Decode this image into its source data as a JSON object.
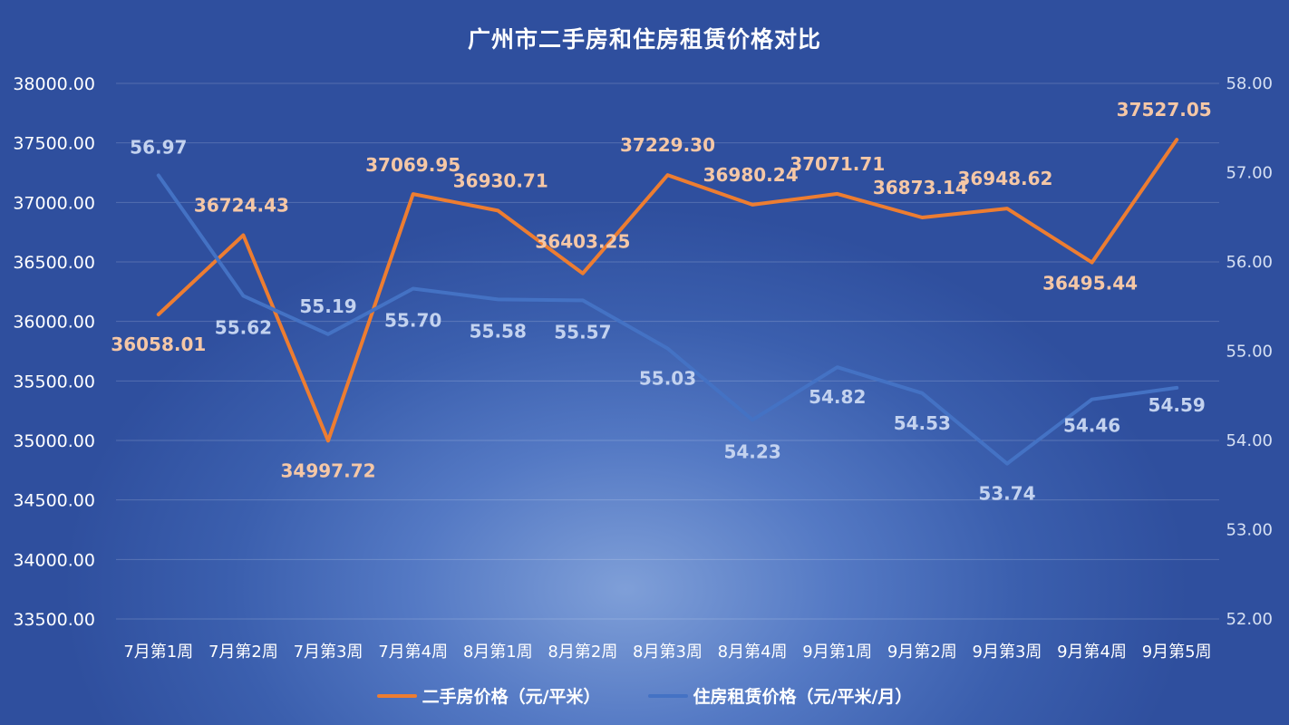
{
  "chart_data": {
    "type": "line",
    "title": "广州市二手房和住房租赁价格对比",
    "categories": [
      "7月第1周",
      "7月第2周",
      "7月第3周",
      "7月第4周",
      "8月第1周",
      "8月第2周",
      "8月第3周",
      "8月第4周",
      "9月第1周",
      "9月第2周",
      "9月第3周",
      "9月第4周",
      "9月第5周"
    ],
    "series": [
      {
        "name": "二手房价格（元/平米）",
        "axis": "left",
        "color": "#ed7d31",
        "values": [
          36058.01,
          36724.43,
          34997.72,
          37069.95,
          36930.71,
          36403.25,
          37229.3,
          36980.24,
          37071.71,
          36873.14,
          36948.62,
          36495.44,
          37527.05
        ],
        "labels": [
          "36058.01",
          "36724.43",
          "34997.72",
          "37069.95",
          "36930.71",
          "36403.25",
          "37229.30",
          "36980.24",
          "37071.71",
          "36873.14",
          "36948.62",
          "36495.44",
          "37527.05"
        ]
      },
      {
        "name": "住房租赁价格（元/平米/月）",
        "axis": "right",
        "color": "#4472c4",
        "values": [
          56.97,
          55.62,
          55.19,
          55.7,
          55.58,
          55.57,
          55.03,
          54.23,
          54.82,
          54.53,
          53.74,
          54.46,
          54.59
        ],
        "labels": [
          "56.97",
          "55.62",
          "55.19",
          "55.70",
          "55.58",
          "55.57",
          "55.03",
          "54.23",
          "54.82",
          "54.53",
          "53.74",
          "54.46",
          "54.59"
        ]
      }
    ],
    "y_left": {
      "min": 33500,
      "max": 38000,
      "ticks": [
        "38000.00",
        "37500.00",
        "37000.00",
        "36500.00",
        "36000.00",
        "35500.00",
        "35000.00",
        "34500.00",
        "34000.00",
        "33500.00"
      ]
    },
    "y_right": {
      "min": 52,
      "max": 58,
      "ticks": [
        "58.00",
        "57.00",
        "56.00",
        "55.00",
        "54.00",
        "53.00",
        "52.00"
      ]
    },
    "grid": true,
    "legend_position": "bottom"
  }
}
